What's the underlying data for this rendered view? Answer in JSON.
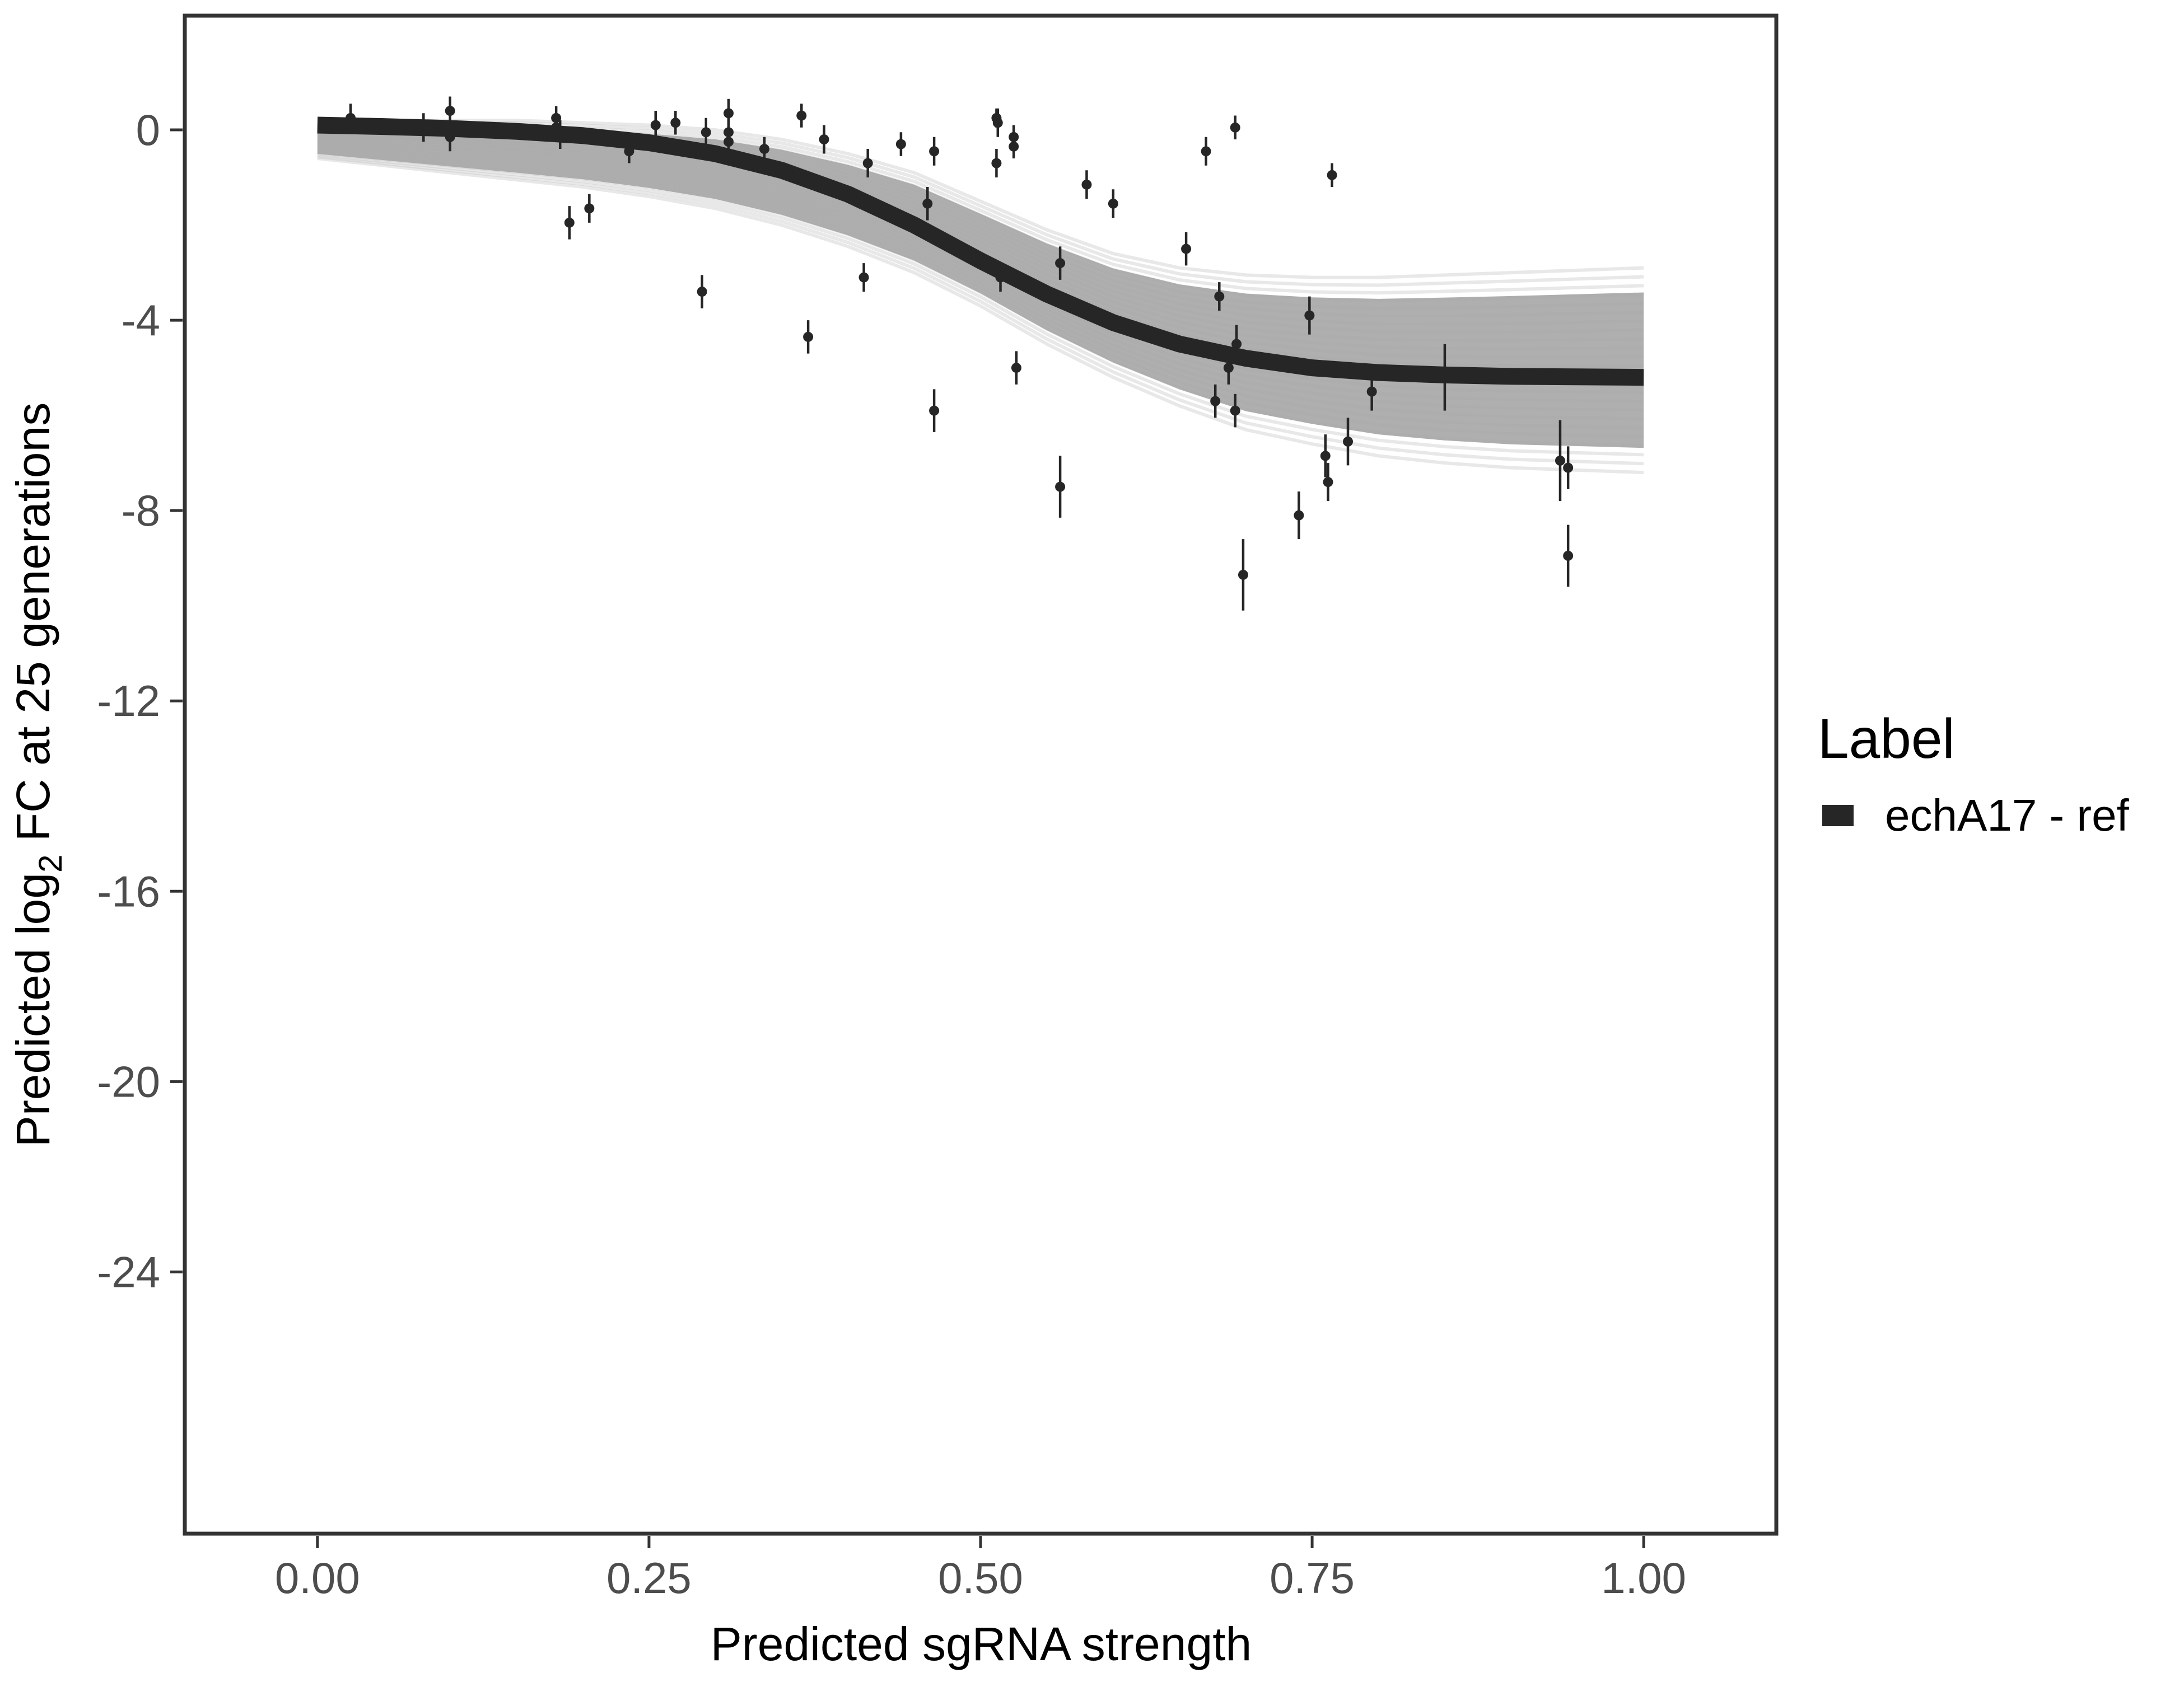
{
  "chart_data": {
    "type": "line",
    "xlabel": "Predicted sgRNA strength",
    "ylabel_prefix": "Predicted  log",
    "ylabel_subscript": "2",
    "ylabel_suffix": " FC at 25 generations",
    "xlim": [
      -0.1,
      1.1
    ],
    "ylim": [
      -29.5,
      2.4
    ],
    "x_ticks": [
      0.0,
      0.25,
      0.5,
      0.75,
      1.0
    ],
    "x_tick_labels": [
      "0.00",
      "0.25",
      "0.50",
      "0.75",
      "1.00"
    ],
    "y_ticks": [
      0,
      -4,
      -8,
      -12,
      -16,
      -20,
      -24
    ],
    "y_tick_labels": [
      "0",
      "-4",
      "-8",
      "-12",
      "-16",
      "-20",
      "-24"
    ],
    "grid": false,
    "legend": {
      "title": "Label",
      "position": "right",
      "entries": [
        {
          "label": "echA17 - ref",
          "color": "#262626"
        }
      ]
    },
    "series": [
      {
        "name": "echA17 - ref",
        "kind": "fitted-curve",
        "color": "#262626",
        "x": [
          0.0,
          0.05,
          0.1,
          0.15,
          0.2,
          0.25,
          0.3,
          0.35,
          0.4,
          0.45,
          0.5,
          0.55,
          0.6,
          0.65,
          0.7,
          0.75,
          0.8,
          0.85,
          0.9,
          0.95,
          1.0
        ],
        "y": [
          0.1,
          0.07,
          0.03,
          -0.03,
          -0.12,
          -0.27,
          -0.5,
          -0.85,
          -1.35,
          -2.0,
          -2.75,
          -3.45,
          -4.05,
          -4.5,
          -4.8,
          -5.0,
          -5.1,
          -5.15,
          -5.18,
          -5.19,
          -5.2
        ]
      }
    ],
    "uncertainty_band": {
      "color": "#a6a6a6",
      "upper": [
        0.2,
        0.2,
        0.2,
        0.2,
        0.15,
        0.1,
        0.0,
        -0.2,
        -0.5,
        -0.9,
        -1.5,
        -2.1,
        -2.6,
        -2.9,
        -3.05,
        -3.1,
        -3.1,
        -3.05,
        -3.0,
        -2.95,
        -2.9
      ],
      "lower": [
        -0.6,
        -0.75,
        -0.9,
        -1.05,
        -1.2,
        -1.4,
        -1.65,
        -2.0,
        -2.45,
        -3.0,
        -3.7,
        -4.5,
        -5.2,
        -5.8,
        -6.3,
        -6.6,
        -6.85,
        -7.0,
        -7.1,
        -7.15,
        -7.2
      ]
    },
    "points": [
      {
        "x": 0.025,
        "y": 0.25,
        "err": 0.3
      },
      {
        "x": 0.08,
        "y": 0.05,
        "err": 0.3
      },
      {
        "x": 0.1,
        "y": 0.4,
        "err": 0.3
      },
      {
        "x": 0.1,
        "y": -0.15,
        "err": 0.3
      },
      {
        "x": 0.18,
        "y": 0.25,
        "err": 0.25
      },
      {
        "x": 0.18,
        "y": 0.05,
        "err": 0.3
      },
      {
        "x": 0.183,
        "y": -0.1,
        "err": 0.3
      },
      {
        "x": 0.19,
        "y": -1.95,
        "err": 0.35
      },
      {
        "x": 0.205,
        "y": -1.65,
        "err": 0.3
      },
      {
        "x": 0.235,
        "y": -0.45,
        "err": 0.25
      },
      {
        "x": 0.255,
        "y": 0.1,
        "err": 0.3
      },
      {
        "x": 0.27,
        "y": 0.15,
        "err": 0.25
      },
      {
        "x": 0.29,
        "y": -3.4,
        "err": 0.35
      },
      {
        "x": 0.293,
        "y": -0.05,
        "err": 0.3
      },
      {
        "x": 0.31,
        "y": 0.35,
        "err": 0.3
      },
      {
        "x": 0.31,
        "y": -0.05,
        "err": 0.3
      },
      {
        "x": 0.31,
        "y": -0.25,
        "err": 0.3
      },
      {
        "x": 0.337,
        "y": -0.4,
        "err": 0.25
      },
      {
        "x": 0.365,
        "y": 0.3,
        "err": 0.25
      },
      {
        "x": 0.37,
        "y": -4.35,
        "err": 0.35
      },
      {
        "x": 0.382,
        "y": -0.2,
        "err": 0.3
      },
      {
        "x": 0.412,
        "y": -3.1,
        "err": 0.3
      },
      {
        "x": 0.415,
        "y": -0.7,
        "err": 0.3
      },
      {
        "x": 0.44,
        "y": -0.3,
        "err": 0.25
      },
      {
        "x": 0.46,
        "y": -1.55,
        "err": 0.35
      },
      {
        "x": 0.465,
        "y": -5.9,
        "err": 0.45
      },
      {
        "x": 0.465,
        "y": -0.45,
        "err": 0.3
      },
      {
        "x": 0.512,
        "y": 0.25,
        "err": 0.2
      },
      {
        "x": 0.513,
        "y": 0.15,
        "err": 0.3
      },
      {
        "x": 0.512,
        "y": -0.7,
        "err": 0.3
      },
      {
        "x": 0.515,
        "y": -3.1,
        "err": 0.3
      },
      {
        "x": 0.525,
        "y": -0.15,
        "err": 0.25
      },
      {
        "x": 0.525,
        "y": -0.35,
        "err": 0.25
      },
      {
        "x": 0.527,
        "y": -5.0,
        "err": 0.35
      },
      {
        "x": 0.56,
        "y": -2.8,
        "err": 0.35
      },
      {
        "x": 0.56,
        "y": -7.5,
        "err": 0.65
      },
      {
        "x": 0.58,
        "y": -1.15,
        "err": 0.3
      },
      {
        "x": 0.6,
        "y": -1.55,
        "err": 0.3
      },
      {
        "x": 0.655,
        "y": -2.5,
        "err": 0.35
      },
      {
        "x": 0.67,
        "y": -0.45,
        "err": 0.3
      },
      {
        "x": 0.677,
        "y": -5.7,
        "err": 0.35
      },
      {
        "x": 0.68,
        "y": -3.5,
        "err": 0.3
      },
      {
        "x": 0.687,
        "y": -5.0,
        "err": 0.35
      },
      {
        "x": 0.692,
        "y": 0.05,
        "err": 0.25
      },
      {
        "x": 0.692,
        "y": -5.9,
        "err": 0.35
      },
      {
        "x": 0.693,
        "y": -4.5,
        "err": 0.4
      },
      {
        "x": 0.698,
        "y": -9.35,
        "err": 0.75
      },
      {
        "x": 0.74,
        "y": -8.1,
        "err": 0.5
      },
      {
        "x": 0.748,
        "y": -3.9,
        "err": 0.4
      },
      {
        "x": 0.76,
        "y": -6.85,
        "err": 0.45
      },
      {
        "x": 0.762,
        "y": -7.4,
        "err": 0.4
      },
      {
        "x": 0.765,
        "y": -0.95,
        "err": 0.25
      },
      {
        "x": 0.777,
        "y": -6.55,
        "err": 0.5
      },
      {
        "x": 0.795,
        "y": -5.5,
        "err": 0.4
      },
      {
        "x": 0.85,
        "y": -5.2,
        "err": 0.7
      },
      {
        "x": 0.937,
        "y": -6.95,
        "err": 0.85
      },
      {
        "x": 0.943,
        "y": -7.1,
        "err": 0.45
      },
      {
        "x": 0.943,
        "y": -8.95,
        "err": 0.65
      }
    ]
  }
}
